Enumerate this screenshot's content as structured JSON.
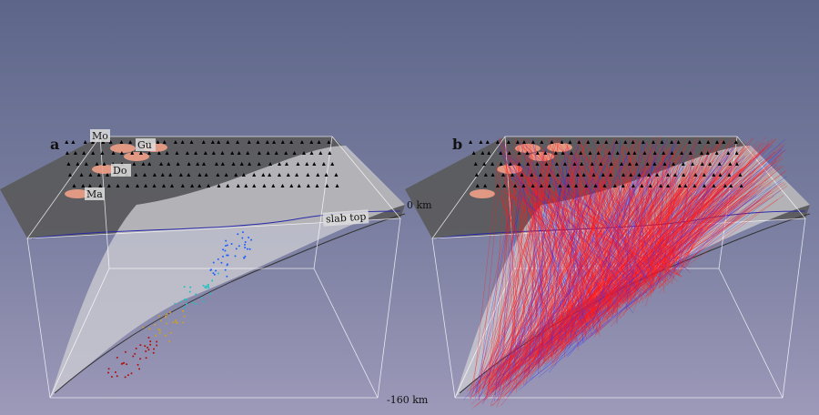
{
  "panels": [
    {
      "label": "a",
      "volcanoes": [
        "Mo",
        "Gu",
        "Do",
        "Ma"
      ],
      "surface_label": "slab top"
    },
    {
      "label": "b"
    }
  ],
  "depth_axis": {
    "top": "0 km",
    "bottom": "-160 km"
  },
  "colors": {
    "background_top": "#5d6689",
    "background_bottom": "#9d99b9",
    "ray_red": "#ff1a1a",
    "ray_blue": "#2a2aff",
    "station": "#000000",
    "box_edge": "#ffffff"
  }
}
